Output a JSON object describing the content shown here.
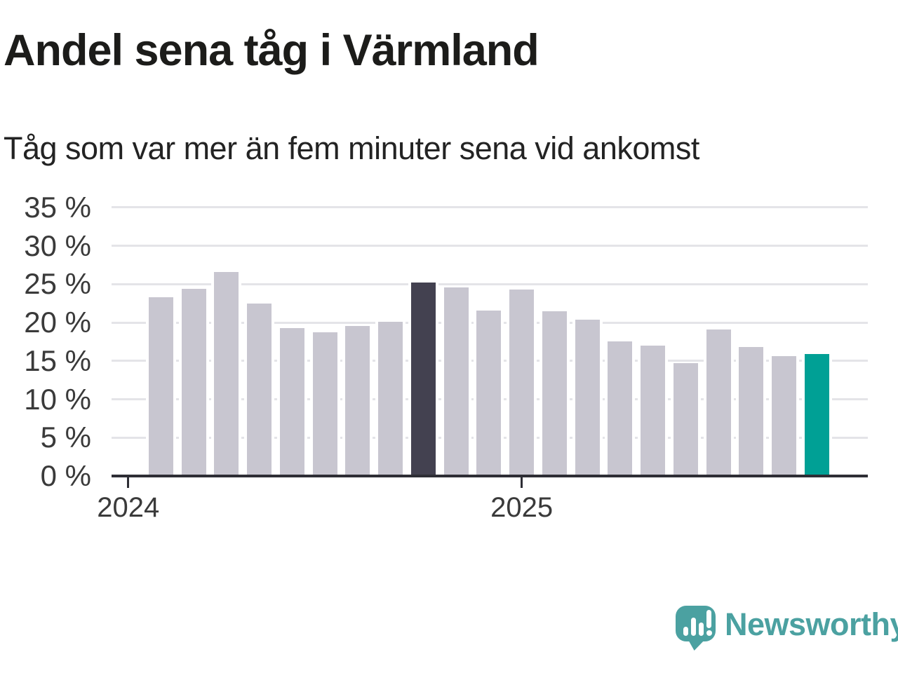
{
  "header": {
    "title": "Andel sena tåg i Värmland",
    "subtitle": "Tåg som var mer än fem minuter sena vid ankomst"
  },
  "footer": {
    "brand": "Newsworthy",
    "logo_icon": "bar-chart-exclamation-speech-bubble"
  },
  "chart_data": {
    "type": "bar",
    "title": "Andel sena tåg i Värmland",
    "subtitle": "Tåg som var mer än fem minuter sena vid ankomst",
    "unit": "percent",
    "ylim": [
      0,
      35
    ],
    "yticks": [
      0,
      5,
      10,
      15,
      20,
      25,
      30,
      35
    ],
    "ytick_labels": [
      "0 %",
      "5 %",
      "10 %",
      "15 %",
      "20 %",
      "25 %",
      "30 %",
      "35 %"
    ],
    "grid": "horizontal",
    "legend": "none",
    "x_axis": {
      "ticks": [
        {
          "label": "2024",
          "bar_slot": -1
        },
        {
          "label": "2025",
          "bar_slot": 11
        }
      ]
    },
    "series": [
      {
        "name": "Andel sena tåg",
        "values": [
          23.3,
          24.4,
          26.6,
          22.5,
          19.3,
          18.7,
          19.6,
          20.1,
          25.2,
          24.6,
          21.6,
          24.3,
          21.5,
          20.4,
          17.5,
          17.0,
          14.7,
          19.1,
          16.8,
          15.6,
          15.9
        ]
      }
    ],
    "highlight": {
      "dark_bar_index": 8,
      "teal_bar_index": 20
    },
    "colors": {
      "bar": "#c8c6d0",
      "bar_dark": "#434150",
      "bar_teal": "#00a095",
      "gridline": "#e4e4e8",
      "axis": "#2e2e35",
      "brand": "#4ba1a1"
    }
  }
}
